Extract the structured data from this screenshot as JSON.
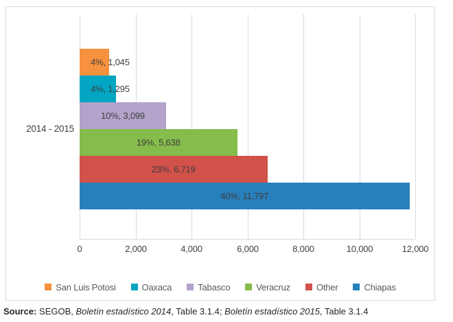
{
  "chart_data": {
    "type": "bar",
    "orientation": "horizontal",
    "title": "",
    "category": "2014 - 2015",
    "series": [
      {
        "name": "San Luis Potosi",
        "value": 1045,
        "percent": "4%",
        "label": "4%, 1,045",
        "color": "#F6913E"
      },
      {
        "name": "Oaxaca",
        "value": 1295,
        "percent": "4%",
        "label": "4%, 1,295",
        "color": "#02A6C2"
      },
      {
        "name": "Tabasco",
        "value": 3099,
        "percent": "10%",
        "label": "10%, 3,099",
        "color": "#B3A3CA"
      },
      {
        "name": "Veracruz",
        "value": 5638,
        "percent": "19%",
        "label": "19%, 5,638",
        "color": "#86BC4B"
      },
      {
        "name": "Other",
        "value": 6719,
        "percent": "23%",
        "label": "23%, 6,719",
        "color": "#D2514B"
      },
      {
        "name": "Chiapas",
        "value": 11797,
        "percent": "40%",
        "label": "40%, 11,797",
        "color": "#2880BB"
      }
    ],
    "x_ticks": [
      "0",
      "2,000",
      "4,000",
      "6,000",
      "8,000",
      "10,000",
      "12,000"
    ],
    "x_min": 0,
    "x_max": 12000,
    "grid": true,
    "gridline_color": "#D9D9D9",
    "legend_position": "bottom",
    "legend": [
      "San Luis Potosi",
      "Oaxaca",
      "Tabasco",
      "Veracruz",
      "Other",
      "Chiapas"
    ]
  },
  "source": {
    "segments": [
      {
        "text": "Source:",
        "bold": true,
        "italic": false
      },
      {
        "text": " SEGOB, ",
        "bold": false,
        "italic": false
      },
      {
        "text": "Boletín estadístico 2014",
        "bold": false,
        "italic": true
      },
      {
        "text": ", Table 3.1.4; ",
        "bold": false,
        "italic": false
      },
      {
        "text": "Boletín estadístico 2015",
        "bold": false,
        "italic": true
      },
      {
        "text": ", Table 3.1.4",
        "bold": false,
        "italic": false
      }
    ]
  }
}
